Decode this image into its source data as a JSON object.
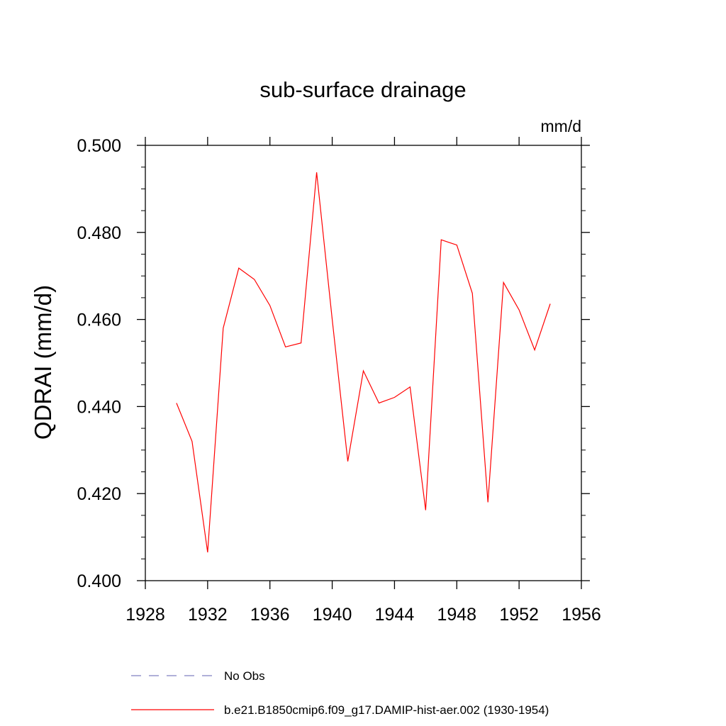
{
  "chart_data": {
    "type": "line",
    "title": "sub-surface drainage",
    "units": "mm/d",
    "ylabel": "QDRAI  (mm/d)",
    "xlabel": "",
    "xlim": [
      1928,
      1956
    ],
    "ylim": [
      0.4,
      0.5
    ],
    "xticks": [
      "1928",
      "1932",
      "1936",
      "1940",
      "1944",
      "1948",
      "1952",
      "1956"
    ],
    "yticks": [
      "0.400",
      "0.420",
      "0.440",
      "0.460",
      "0.480",
      "0.500"
    ],
    "grid": false,
    "legend_position": "bottom",
    "series": [
      {
        "name": "No Obs",
        "color": "#8080c0",
        "dash": "dashed",
        "x": [],
        "values": []
      },
      {
        "name": "b.e21.B1850cmip6.f09_g17.DAMIP-hist-aer.002 (1930-1954)",
        "color": "#ff0000",
        "dash": "solid",
        "x": [
          1930,
          1931,
          1932,
          1933,
          1934,
          1935,
          1936,
          1937,
          1938,
          1939,
          1940,
          1941,
          1942,
          1943,
          1944,
          1945,
          1946,
          1947,
          1948,
          1949,
          1950,
          1951,
          1952,
          1953,
          1954
        ],
        "values": [
          0.4408,
          0.432,
          0.4065,
          0.458,
          0.4718,
          0.4692,
          0.4632,
          0.4537,
          0.4546,
          0.4938,
          0.46,
          0.4274,
          0.4482,
          0.4408,
          0.4421,
          0.4445,
          0.4162,
          0.4783,
          0.4771,
          0.466,
          0.418,
          0.4685,
          0.4622,
          0.453,
          0.4636
        ]
      }
    ]
  }
}
